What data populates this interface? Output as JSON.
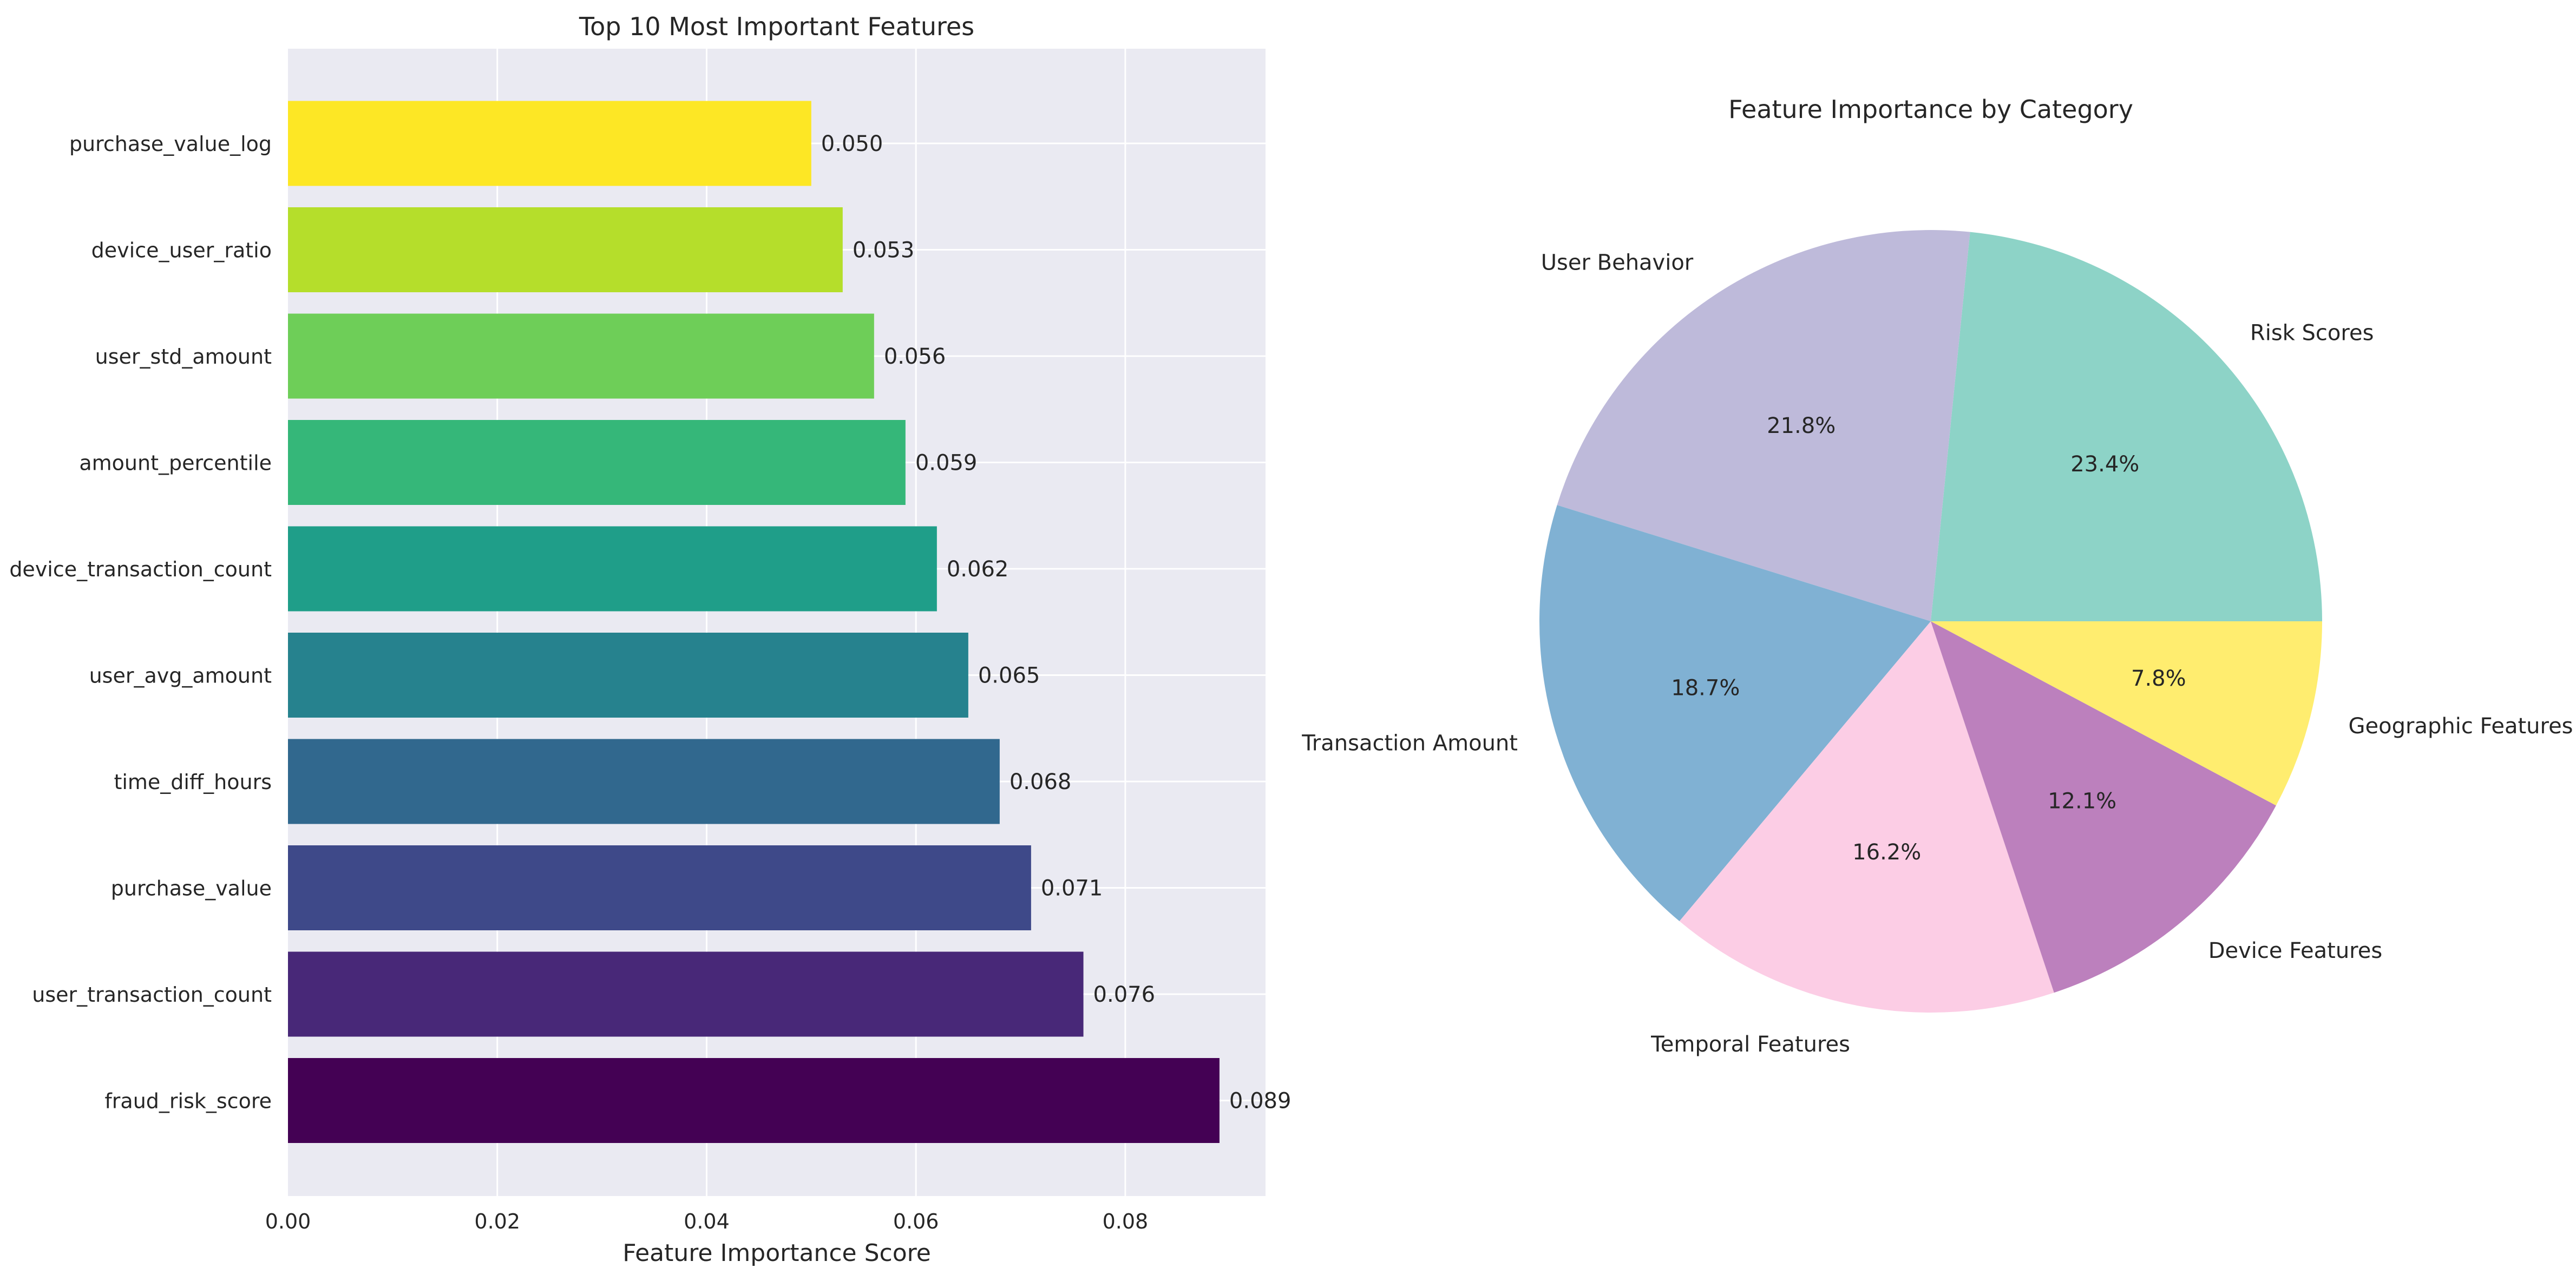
{
  "colors": {
    "axes_bg": "#EAEAF2",
    "grid": "#FFFFFF",
    "text": "#262626",
    "bar_colors": [
      "#FDE725",
      "#B5DE2B",
      "#6ECE58",
      "#35B779",
      "#1F9E89",
      "#26828E",
      "#31688E",
      "#3E4989",
      "#482878",
      "#440154"
    ],
    "pie_colors": [
      "#8DD3C7",
      "#BEBADA",
      "#80B1D3",
      "#FCCDE5",
      "#BC80BD",
      "#FFED6F"
    ]
  },
  "chart_data": [
    {
      "type": "bar",
      "orientation": "horizontal",
      "title": "Top 10 Most Important Features",
      "xlabel": "Feature Importance Score",
      "ylabel": "",
      "xlim": [
        0,
        0.0934
      ],
      "xticks": [
        0.0,
        0.02,
        0.04,
        0.06,
        0.08
      ],
      "xtick_labels": [
        "0.00",
        "0.02",
        "0.04",
        "0.06",
        "0.08"
      ],
      "grid": true,
      "categories": [
        "purchase_value_log",
        "device_user_ratio",
        "user_std_amount",
        "amount_percentile",
        "device_transaction_count",
        "user_avg_amount",
        "time_diff_hours",
        "purchase_value",
        "user_transaction_count",
        "fraud_risk_score"
      ],
      "values": [
        0.05,
        0.053,
        0.056,
        0.059,
        0.062,
        0.065,
        0.068,
        0.071,
        0.076,
        0.089
      ],
      "value_labels": [
        "0.050",
        "0.053",
        "0.056",
        "0.059",
        "0.062",
        "0.065",
        "0.068",
        "0.071",
        "0.076",
        "0.089"
      ]
    },
    {
      "type": "pie",
      "title": "Feature Importance by Category",
      "labels": [
        "Risk Scores",
        "User Behavior",
        "Transaction Amount",
        "Temporal Features",
        "Device Features",
        "Geographic Features"
      ],
      "values": [
        23.4,
        21.8,
        18.7,
        16.2,
        12.1,
        7.8
      ],
      "pct_labels": [
        "23.4%",
        "21.8%",
        "18.7%",
        "16.2%",
        "12.1%",
        "7.8%"
      ],
      "start_angle_deg": 0,
      "direction": "counterclockwise"
    }
  ]
}
